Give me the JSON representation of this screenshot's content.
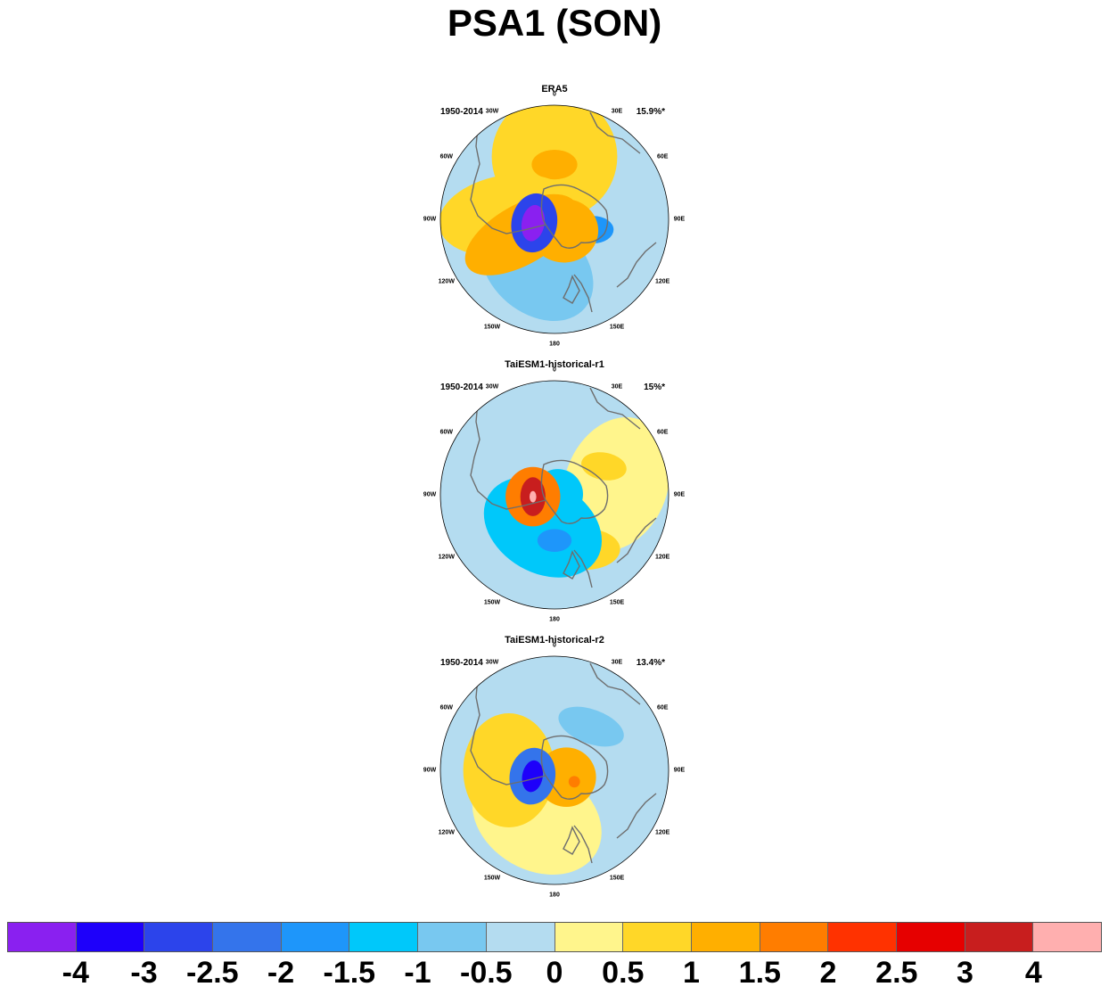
{
  "title": "PSA1 (SON)",
  "panels": [
    {
      "title": "ERA5",
      "period": "1950-2014",
      "variance": "15.9%*",
      "blobs": [
        {
          "lon": 0,
          "r": 0.55,
          "rx": 0.55,
          "ry": 0.55,
          "rot": 0,
          "level": 0.8
        },
        {
          "lon": 200,
          "r": 0.45,
          "rx": 0.55,
          "ry": 0.4,
          "rot": 40,
          "level": -0.9
        },
        {
          "lon": 105,
          "r": 0.35,
          "rx": 0.18,
          "ry": 0.12,
          "rot": 0,
          "level": -1.6
        },
        {
          "lon": 0,
          "r": 0.48,
          "rx": 0.2,
          "ry": 0.13,
          "rot": 0,
          "level": 1.2
        },
        {
          "lon": 275,
          "r": 0.42,
          "rx": 0.6,
          "ry": 0.35,
          "rot": -10,
          "level": 0.8
        },
        {
          "lon": 245,
          "r": 0.32,
          "rx": 0.55,
          "ry": 0.26,
          "rot": -30,
          "level": 1.2
        },
        {
          "lon": 140,
          "r": 0.13,
          "rx": 0.3,
          "ry": 0.28,
          "rot": 0,
          "level": 1.1
        },
        {
          "lon": 260,
          "r": 0.18,
          "rx": 0.2,
          "ry": 0.26,
          "rot": 10,
          "level": -2.6
        },
        {
          "lon": 260,
          "r": 0.19,
          "rx": 0.1,
          "ry": 0.16,
          "rot": 10,
          "level": -4.1
        }
      ]
    },
    {
      "title": "TaiESM1-historical-r1",
      "period": "1950-2014",
      "variance": "15%*",
      "blobs": [
        {
          "lon": 80,
          "r": 0.55,
          "rx": 0.45,
          "ry": 0.6,
          "rot": 20,
          "level": 0.3
        },
        {
          "lon": 60,
          "r": 0.5,
          "rx": 0.2,
          "ry": 0.12,
          "rot": 10,
          "level": 0.8
        },
        {
          "lon": 150,
          "r": 0.55,
          "rx": 0.3,
          "ry": 0.18,
          "rot": 0,
          "level": 0.8
        },
        {
          "lon": 200,
          "r": 0.3,
          "rx": 0.55,
          "ry": 0.4,
          "rot": 30,
          "level": -1.2
        },
        {
          "lon": 180,
          "r": 0.4,
          "rx": 0.15,
          "ry": 0.1,
          "rot": 0,
          "level": -1.7
        },
        {
          "lon": 80,
          "r": 0.03,
          "rx": 0.22,
          "ry": 0.22,
          "rot": 0,
          "level": -1.2
        },
        {
          "lon": 265,
          "r": 0.19,
          "rx": 0.24,
          "ry": 0.26,
          "rot": 0,
          "level": 1.6
        },
        {
          "lon": 265,
          "r": 0.19,
          "rx": 0.11,
          "ry": 0.17,
          "rot": 0,
          "level": 3.2
        },
        {
          "lon": 265,
          "r": 0.19,
          "rx": 0.03,
          "ry": 0.05,
          "rot": 0,
          "level": 4.2
        }
      ]
    },
    {
      "title": "TaiESM1-historical-r2",
      "period": "1950-2014",
      "variance": "13.4%*",
      "blobs": [
        {
          "lon": 200,
          "r": 0.45,
          "rx": 0.6,
          "ry": 0.45,
          "rot": 30,
          "level": 0.3
        },
        {
          "lon": 270,
          "r": 0.4,
          "rx": 0.4,
          "ry": 0.5,
          "rot": 0,
          "level": 0.8
        },
        {
          "lon": 40,
          "r": 0.5,
          "rx": 0.3,
          "ry": 0.15,
          "rot": 20,
          "level": -0.8
        },
        {
          "lon": 120,
          "r": 0.12,
          "rx": 0.26,
          "ry": 0.26,
          "rot": 0,
          "level": 1.2
        },
        {
          "lon": 120,
          "r": 0.2,
          "rx": 0.05,
          "ry": 0.05,
          "rot": 0,
          "level": 1.7
        },
        {
          "lon": 255,
          "r": 0.2,
          "rx": 0.2,
          "ry": 0.25,
          "rot": 10,
          "level": -2.2
        },
        {
          "lon": 255,
          "r": 0.2,
          "rx": 0.09,
          "ry": 0.14,
          "rot": 10,
          "level": -3.2
        }
      ]
    }
  ],
  "longitude_labels": [
    "0",
    "30E",
    "60E",
    "90E",
    "120E",
    "150E",
    "180",
    "150W",
    "120W",
    "90W",
    "60W",
    "30W"
  ],
  "colorbar": {
    "labels": [
      "-4",
      "-3",
      "-2.5",
      "-2",
      "-1.5",
      "-1",
      "-0.5",
      "0",
      "0.5",
      "1",
      "1.5",
      "2",
      "2.5",
      "3",
      "4"
    ],
    "colors": [
      "#8a20f0",
      "#1e00fa",
      "#2c44eb",
      "#3474eb",
      "#1e96fa",
      "#00c8fa",
      "#78c8f0",
      "#b4dcf0",
      "#fff58c",
      "#ffd728",
      "#ffaf00",
      "#ff7d00",
      "#ff3200",
      "#e60000",
      "#c81e1e",
      "#ffafaf"
    ]
  }
}
